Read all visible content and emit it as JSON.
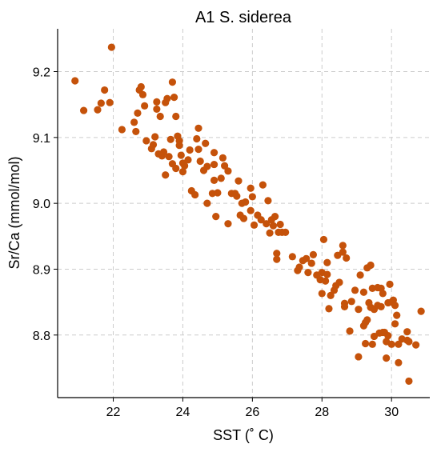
{
  "chart_data": {
    "type": "scatter",
    "title": "A1 S. siderea",
    "xlabel": "SST (˚ C)",
    "ylabel": "Sr/Ca (mmol/mol)",
    "xlim": [
      20.4,
      31.1
    ],
    "ylim": [
      8.705,
      9.265
    ],
    "xticks": [
      22,
      24,
      26,
      28,
      30
    ],
    "yticks": [
      8.8,
      8.9,
      9.0,
      9.1,
      9.2
    ],
    "xtick_labels": [
      "22",
      "24",
      "26",
      "28",
      "30"
    ],
    "ytick_labels": [
      "8.8",
      "8.9",
      "9.0",
      "9.1",
      "9.2"
    ],
    "grid": true,
    "marker_color": "#c5520a",
    "series": [
      {
        "points": [
          [
            20.9,
            9.186
          ],
          [
            21.15,
            9.141
          ],
          [
            21.55,
            9.142
          ],
          [
            21.65,
            9.152
          ],
          [
            21.75,
            9.172
          ],
          [
            21.9,
            9.153
          ],
          [
            21.95,
            9.237
          ],
          [
            22.25,
            9.112
          ],
          [
            22.6,
            9.123
          ],
          [
            22.65,
            9.109
          ],
          [
            22.7,
            9.137
          ],
          [
            22.75,
            9.172
          ],
          [
            22.8,
            9.177
          ],
          [
            22.85,
            9.165
          ],
          [
            22.9,
            9.148
          ],
          [
            22.95,
            9.095
          ],
          [
            23.1,
            9.083
          ],
          [
            23.15,
            9.089
          ],
          [
            23.2,
            9.101
          ],
          [
            23.25,
            9.143
          ],
          [
            23.25,
            9.154
          ],
          [
            23.3,
            9.075
          ],
          [
            23.35,
            9.132
          ],
          [
            23.4,
            9.072
          ],
          [
            23.45,
            9.078
          ],
          [
            23.5,
            9.153
          ],
          [
            23.5,
            9.043
          ],
          [
            23.55,
            9.159
          ],
          [
            23.6,
            9.071
          ],
          [
            23.65,
            9.097
          ],
          [
            23.7,
            9.06
          ],
          [
            23.7,
            9.184
          ],
          [
            23.75,
            9.161
          ],
          [
            23.8,
            9.132
          ],
          [
            23.8,
            9.053
          ],
          [
            23.85,
            9.102
          ],
          [
            23.9,
            9.088
          ],
          [
            23.9,
            9.095
          ],
          [
            23.95,
            9.073
          ],
          [
            24.0,
            9.061
          ],
          [
            24.0,
            9.048
          ],
          [
            24.05,
            9.057
          ],
          [
            24.15,
            9.066
          ],
          [
            24.2,
            9.081
          ],
          [
            24.25,
            9.019
          ],
          [
            24.35,
            9.013
          ],
          [
            24.4,
            9.098
          ],
          [
            24.45,
            9.114
          ],
          [
            24.45,
            9.082
          ],
          [
            24.5,
            9.064
          ],
          [
            24.6,
            9.05
          ],
          [
            24.65,
            9.091
          ],
          [
            24.7,
            9.056
          ],
          [
            24.7,
            9.0
          ],
          [
            24.85,
            9.015
          ],
          [
            24.9,
            9.077
          ],
          [
            24.9,
            9.059
          ],
          [
            24.9,
            9.035
          ],
          [
            24.95,
            8.98
          ],
          [
            25.0,
            9.016
          ],
          [
            25.1,
            9.038
          ],
          [
            25.15,
            9.069
          ],
          [
            25.2,
            9.057
          ],
          [
            25.3,
            9.049
          ],
          [
            25.3,
            8.969
          ],
          [
            25.4,
            9.015
          ],
          [
            25.5,
            9.015
          ],
          [
            25.55,
            9.011
          ],
          [
            25.6,
            9.034
          ],
          [
            25.65,
            8.982
          ],
          [
            25.7,
            9.0
          ],
          [
            25.75,
            8.977
          ],
          [
            25.8,
            9.002
          ],
          [
            25.95,
            9.023
          ],
          [
            25.95,
            8.989
          ],
          [
            26.0,
            9.01
          ],
          [
            26.05,
            8.967
          ],
          [
            26.15,
            8.982
          ],
          [
            26.25,
            8.975
          ],
          [
            26.3,
            9.028
          ],
          [
            26.4,
            8.969
          ],
          [
            26.45,
            9.004
          ],
          [
            26.5,
            8.955
          ],
          [
            26.55,
            8.975
          ],
          [
            26.6,
            8.966
          ],
          [
            26.65,
            8.98
          ],
          [
            26.7,
            8.915
          ],
          [
            26.7,
            8.924
          ],
          [
            26.75,
            8.956
          ],
          [
            26.8,
            8.968
          ],
          [
            26.85,
            8.956
          ],
          [
            26.95,
            8.956
          ],
          [
            27.15,
            8.919
          ],
          [
            27.3,
            8.898
          ],
          [
            27.35,
            8.903
          ],
          [
            27.45,
            8.913
          ],
          [
            27.55,
            8.916
          ],
          [
            27.6,
            8.895
          ],
          [
            27.7,
            8.909
          ],
          [
            27.75,
            8.922
          ],
          [
            27.85,
            8.891
          ],
          [
            27.95,
            8.884
          ],
          [
            28.0,
            8.863
          ],
          [
            28.0,
            8.895
          ],
          [
            28.05,
            8.945
          ],
          [
            28.1,
            8.882
          ],
          [
            28.15,
            8.892
          ],
          [
            28.15,
            8.91
          ],
          [
            28.2,
            8.84
          ],
          [
            28.25,
            8.86
          ],
          [
            28.35,
            8.868
          ],
          [
            28.4,
            8.875
          ],
          [
            28.45,
            8.921
          ],
          [
            28.5,
            8.88
          ],
          [
            28.6,
            8.936
          ],
          [
            28.6,
            8.926
          ],
          [
            28.65,
            8.848
          ],
          [
            28.65,
            8.843
          ],
          [
            28.7,
            8.917
          ],
          [
            28.8,
            8.806
          ],
          [
            28.85,
            8.851
          ],
          [
            28.95,
            8.868
          ],
          [
            29.05,
            8.767
          ],
          [
            29.05,
            8.839
          ],
          [
            29.1,
            8.891
          ],
          [
            29.2,
            8.865
          ],
          [
            29.2,
            8.814
          ],
          [
            29.25,
            8.787
          ],
          [
            29.25,
            8.819
          ],
          [
            29.3,
            8.823
          ],
          [
            29.3,
            8.902
          ],
          [
            29.35,
            8.849
          ],
          [
            29.4,
            8.906
          ],
          [
            29.4,
            8.842
          ],
          [
            29.45,
            8.871
          ],
          [
            29.45,
            8.786
          ],
          [
            29.5,
            8.798
          ],
          [
            29.5,
            8.839
          ],
          [
            29.6,
            8.845
          ],
          [
            29.6,
            8.872
          ],
          [
            29.65,
            8.803
          ],
          [
            29.7,
            8.871
          ],
          [
            29.7,
            8.843
          ],
          [
            29.75,
            8.804
          ],
          [
            29.75,
            8.863
          ],
          [
            29.8,
            8.804
          ],
          [
            29.85,
            8.765
          ],
          [
            29.85,
            8.79
          ],
          [
            29.9,
            8.849
          ],
          [
            29.9,
            8.799
          ],
          [
            29.95,
            8.877
          ],
          [
            30.0,
            8.786
          ],
          [
            30.0,
            8.85
          ],
          [
            30.05,
            8.853
          ],
          [
            30.1,
            8.845
          ],
          [
            30.1,
            8.817
          ],
          [
            30.15,
            8.83
          ],
          [
            30.2,
            8.758
          ],
          [
            30.2,
            8.786
          ],
          [
            30.3,
            8.794
          ],
          [
            30.45,
            8.792
          ],
          [
            30.45,
            8.805
          ],
          [
            30.5,
            8.73
          ],
          [
            30.5,
            8.79
          ],
          [
            30.7,
            8.785
          ],
          [
            30.85,
            8.836
          ]
        ]
      }
    ]
  }
}
